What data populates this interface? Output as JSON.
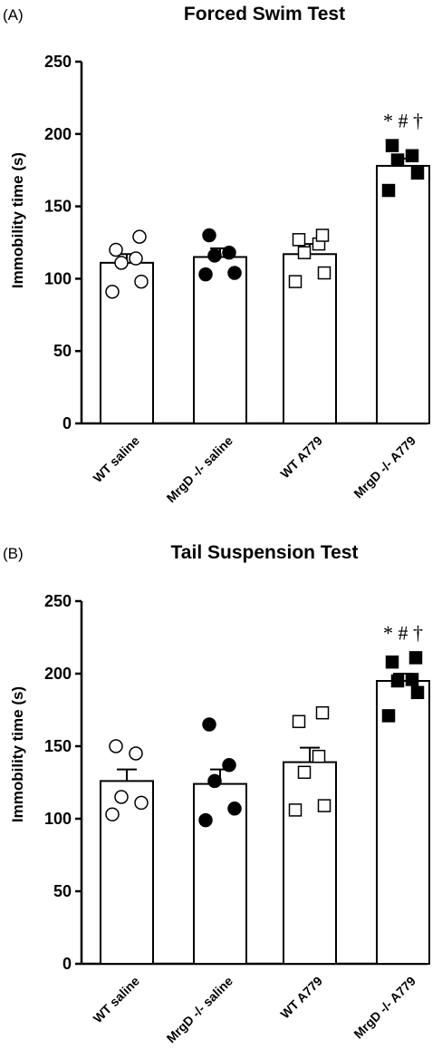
{
  "chart_data": [
    {
      "type": "bar",
      "panel_label": "(A)",
      "title": "Forced Swim Test",
      "xlabel": "",
      "ylabel": "Immobility time (s)",
      "ylim": [
        0,
        250
      ],
      "yticks": [
        0,
        50,
        100,
        150,
        200,
        250
      ],
      "categories": [
        "WT saline",
        "MrgD -/- saline",
        "WT A779",
        "MrgD -/- A779"
      ],
      "values": [
        111,
        115,
        117,
        178
      ],
      "sem": [
        6,
        6,
        7,
        5
      ],
      "points": [
        [
          91,
          98,
          111,
          114,
          120,
          129
        ],
        [
          103,
          104,
          116,
          118,
          130
        ],
        [
          98,
          104,
          118,
          124,
          127,
          130
        ],
        [
          161,
          173,
          182,
          185,
          192
        ]
      ],
      "markers": [
        "open-circle",
        "filled-circle",
        "open-square",
        "filled-square"
      ],
      "annotation": "* # †",
      "annotation_category": "MrgD -/- A779"
    },
    {
      "type": "bar",
      "panel_label": "(B)",
      "title": "Tail Suspension Test",
      "xlabel": "",
      "ylabel": "Immobility time (s)",
      "ylim": [
        0,
        250
      ],
      "yticks": [
        0,
        50,
        100,
        150,
        200,
        250
      ],
      "categories": [
        "WT saline",
        "MrgD -/- saline",
        "WT A779",
        "MrgD -/- A779"
      ],
      "values": [
        126,
        124,
        139,
        195
      ],
      "sem": [
        8,
        10,
        10,
        5
      ],
      "points": [
        [
          103,
          111,
          115,
          145,
          150
        ],
        [
          99,
          107,
          126,
          137,
          165
        ],
        [
          106,
          109,
          132,
          143,
          167,
          173
        ],
        [
          171,
          187,
          195,
          196,
          208,
          211
        ]
      ],
      "markers": [
        "open-circle",
        "filled-circle",
        "open-square",
        "filled-square"
      ],
      "annotation": "* # †",
      "annotation_category": "MrgD -/- A779"
    }
  ]
}
